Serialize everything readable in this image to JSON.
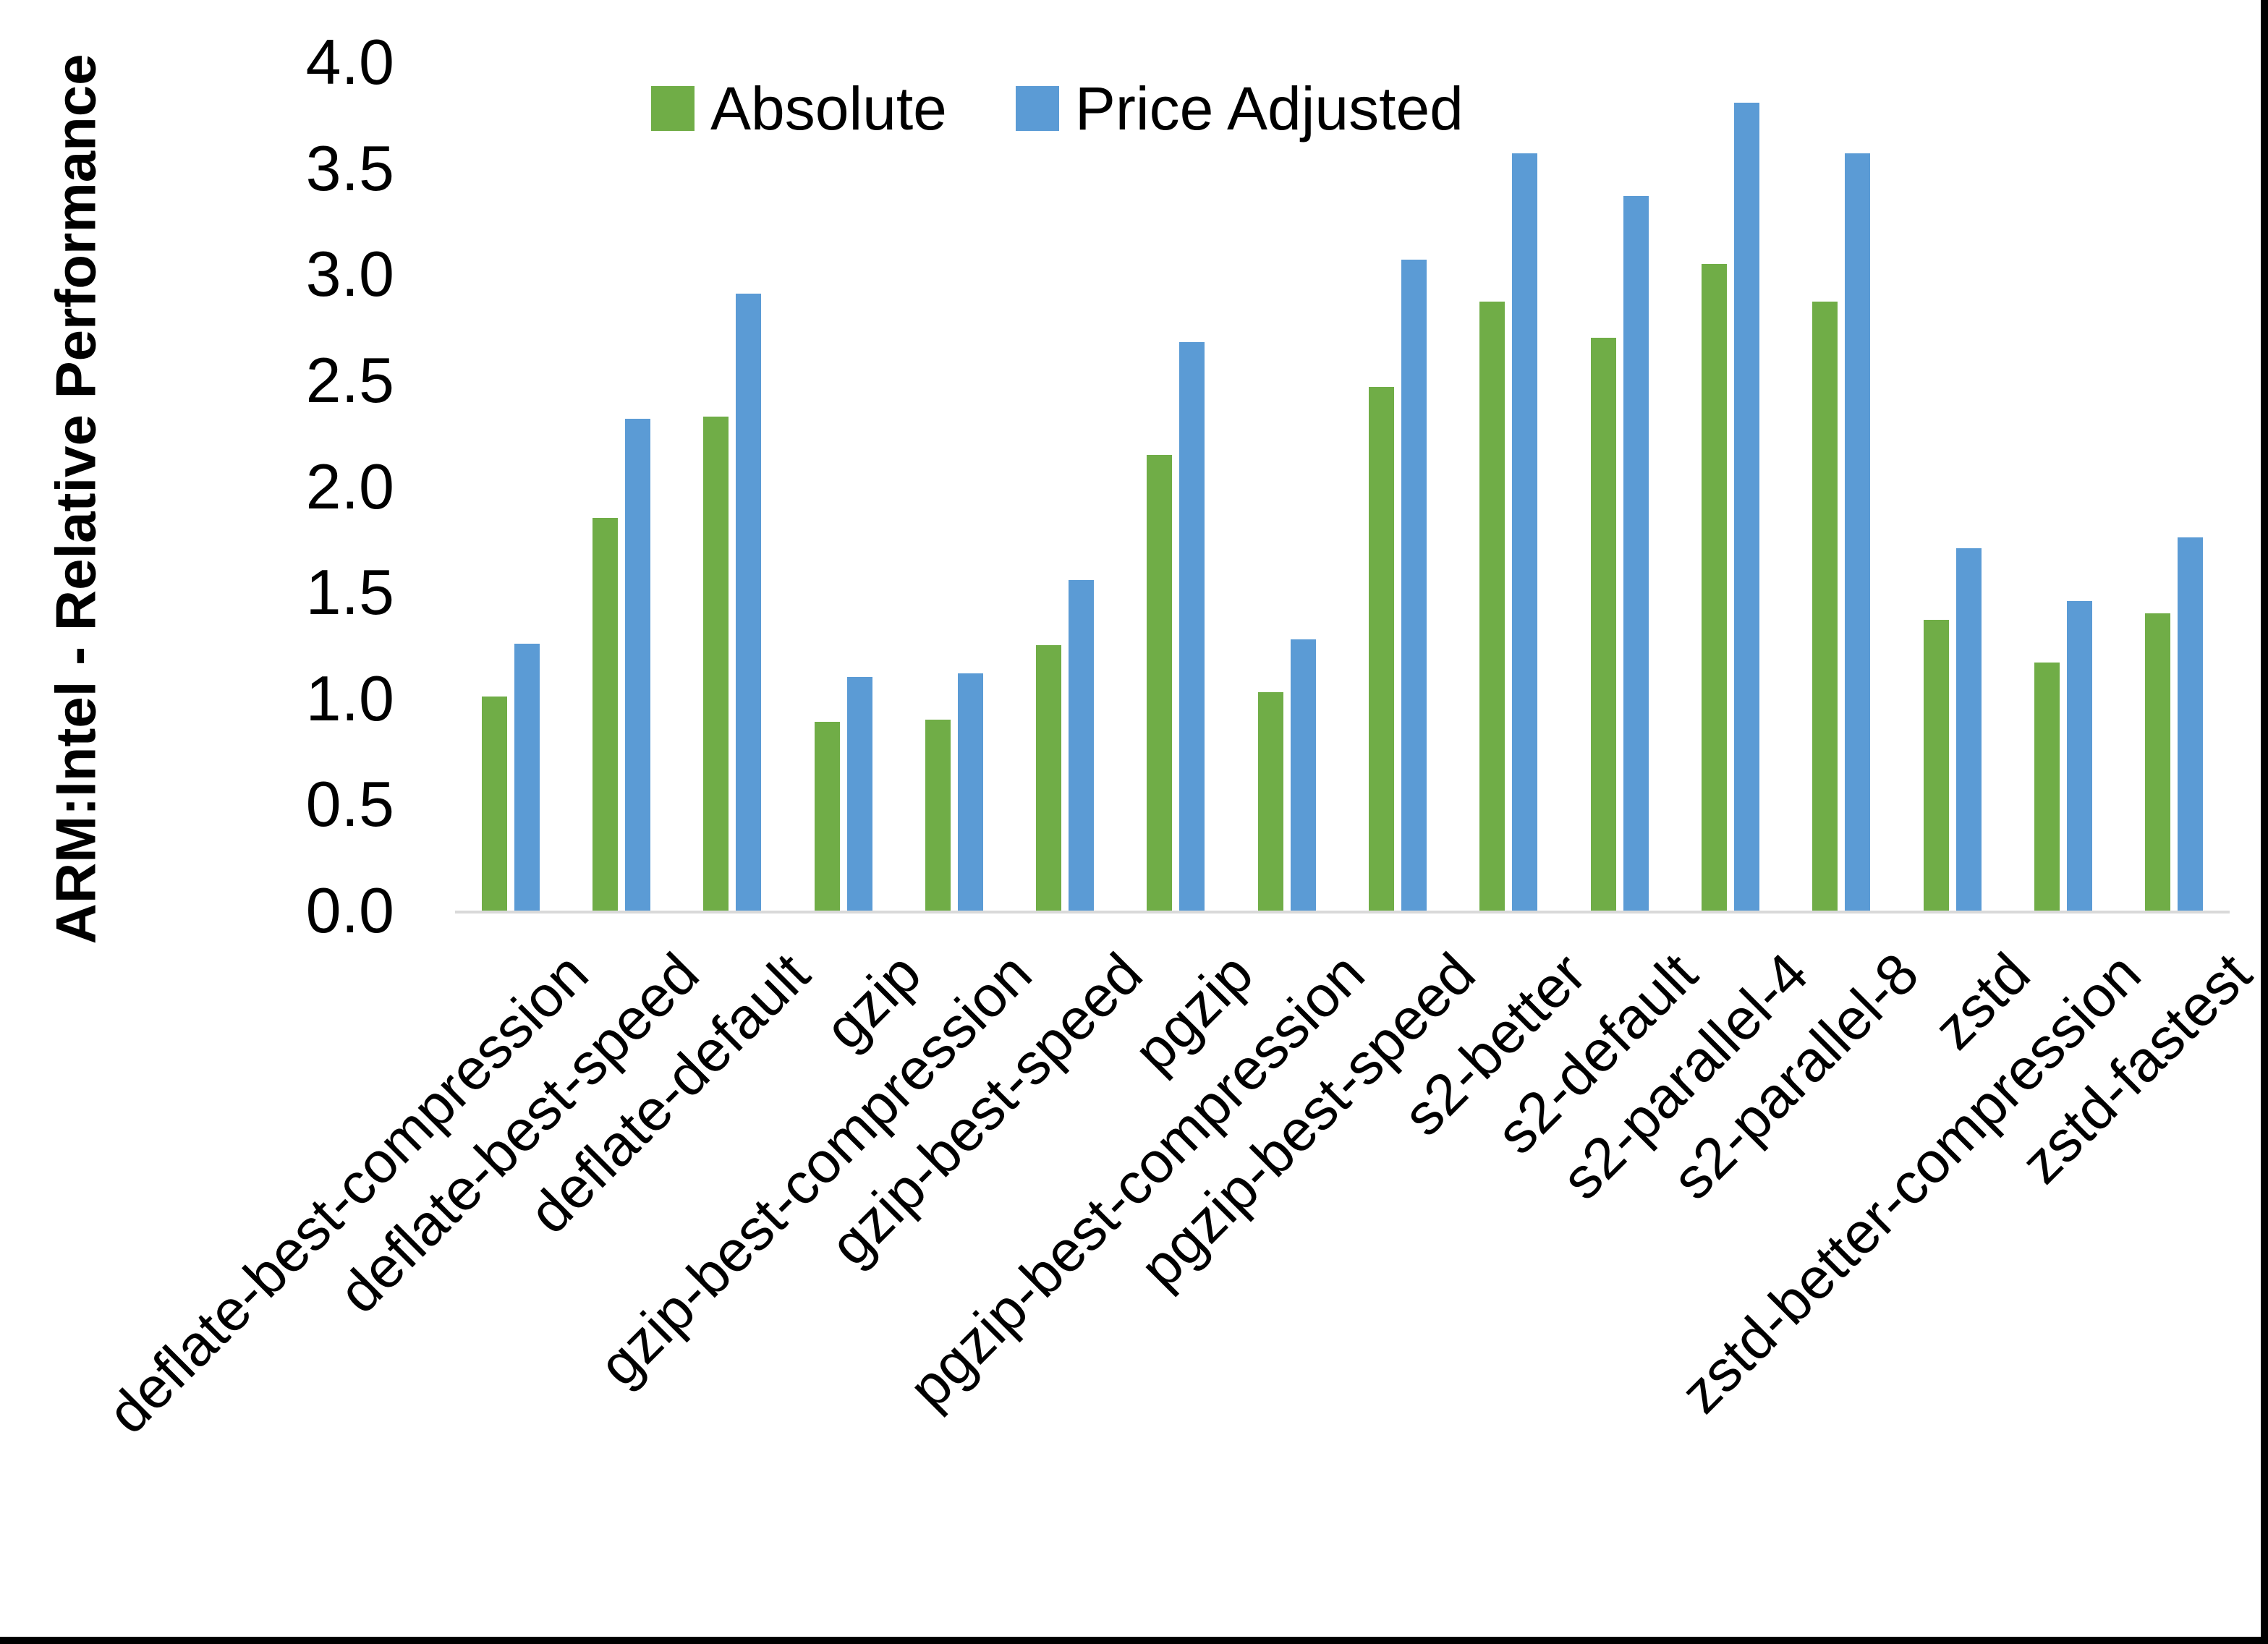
{
  "figure": {
    "background": "#ffffff",
    "border_color": "#000000"
  },
  "axis": {
    "line_color": "#d9d9d9",
    "tick_labels": [
      "0.0",
      "0.5",
      "1.0",
      "1.5",
      "2.0",
      "2.5",
      "3.0",
      "3.5",
      "4.0"
    ],
    "tick_values": [
      0.0,
      0.5,
      1.0,
      1.5,
      2.0,
      2.5,
      3.0,
      3.5,
      4.0
    ]
  },
  "legend": {
    "items": [
      {
        "label": "Absolute",
        "color": "#70AD47"
      },
      {
        "label": "Price Adjusted",
        "color": "#5B9BD5"
      }
    ]
  },
  "chart_data": {
    "type": "bar",
    "title": "",
    "xlabel": "",
    "ylabel": "ARM:Intel - Relative Performance",
    "ylim": [
      0,
      4.0
    ],
    "ytick_step": 0.5,
    "grid": false,
    "legend_position": "top-center",
    "categories": [
      "deflate-best-compression",
      "deflate-best-speed",
      "deflate-default",
      "gzip",
      "gzip-best-compression",
      "gzip-best-speed",
      "pgzip",
      "pgzip-best-compression",
      "pgzip-best-speed",
      "s2-better",
      "s2-default",
      "s2-parallel-4",
      "s2-parallel-8",
      "zstd",
      "zstd-better-compression",
      "zstd-fastest"
    ],
    "series": [
      {
        "name": "Absolute",
        "color": "#70AD47",
        "values": [
          1.01,
          1.85,
          2.33,
          0.89,
          0.9,
          1.25,
          2.15,
          1.03,
          2.47,
          2.87,
          2.7,
          3.05,
          2.87,
          1.37,
          1.17,
          1.4
        ]
      },
      {
        "name": "Price Adjusted",
        "color": "#5B9BD5",
        "values": [
          1.26,
          2.32,
          2.91,
          1.1,
          1.12,
          1.56,
          2.68,
          1.28,
          3.07,
          3.57,
          3.37,
          3.81,
          3.57,
          1.71,
          1.46,
          1.76
        ]
      }
    ]
  }
}
